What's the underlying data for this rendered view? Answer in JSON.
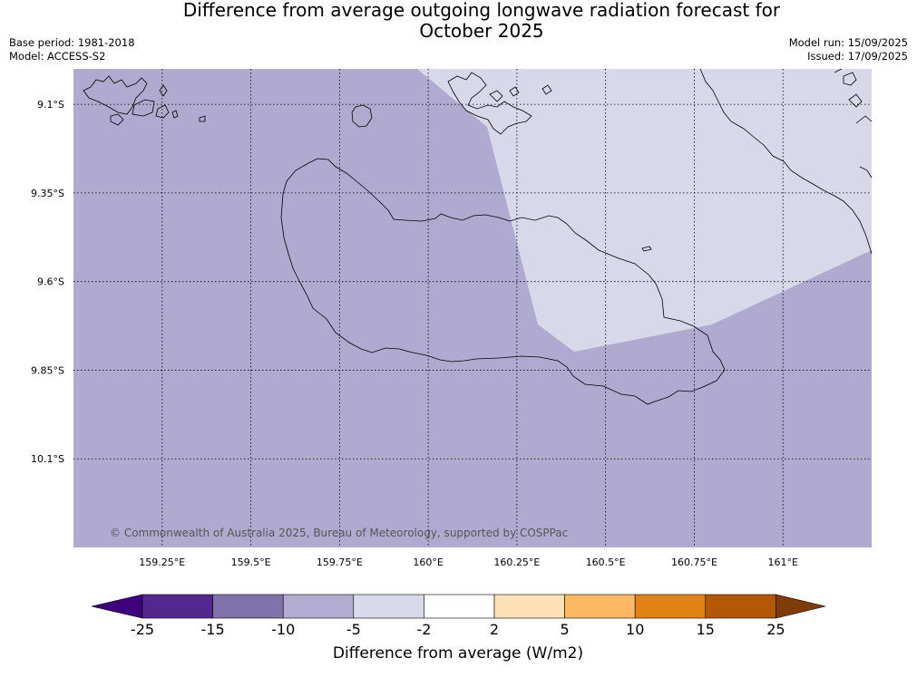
{
  "header": {
    "title_line1": "Difference from average outgoing longwave radiation forecast for",
    "title_line2": "October 2025",
    "base_period": "Base period: 1981-2018",
    "model": "Model: ACCESS-S2",
    "model_run": "Model run: 15/09/2025",
    "issued": "Issued: 17/09/2025"
  },
  "map": {
    "lat_labels": [
      "9.1°S",
      "9.35°S",
      "9.6°S",
      "9.85°S",
      "10.1°S"
    ],
    "lon_labels": [
      "159.25°E",
      "159.5°E",
      "159.75°E",
      "160°E",
      "160.25°E",
      "160.5°E",
      "160.75°E",
      "161°E"
    ],
    "lat_values": [
      -9.1,
      -9.35,
      -9.6,
      -9.85,
      -10.1
    ],
    "lon_values": [
      159.25,
      159.5,
      159.75,
      160.0,
      160.25,
      160.5,
      160.75,
      161.0
    ],
    "lat_range": [
      -10.35,
      -9.0
    ],
    "lon_range": [
      159.0,
      161.25
    ],
    "background_class": "-10 to -5",
    "highlight_class": "-5 to -2",
    "copyright": "© Commonwealth of Australia 2025, Bureau of Meteorology, supported by COSPPac",
    "gridlines": "dotted"
  },
  "colorbar": {
    "ticks": [
      "-25",
      "-15",
      "-10",
      "-5",
      "-2",
      "2",
      "5",
      "10",
      "15",
      "25"
    ],
    "colors": [
      "#3f007d",
      "#54278f",
      "#8073ac",
      "#b2abd2",
      "#d8daeb",
      "#ffffff",
      "#fee0b6",
      "#fdb863",
      "#e08214",
      "#b35806",
      "#7f3b08"
    ],
    "label": "Difference from average (W/m2)",
    "extend": "both"
  }
}
